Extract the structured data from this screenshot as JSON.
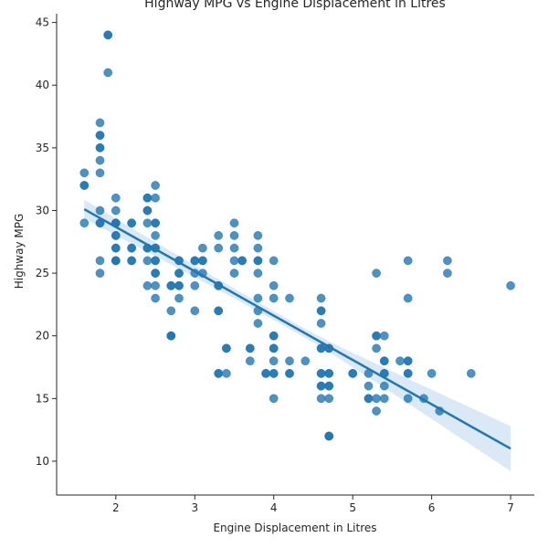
{
  "chart_data": {
    "type": "scatter",
    "title": "Highway MPG vs Engine Displacement in Litres",
    "xlabel": "Engine Displacement in Litres",
    "ylabel": "Highway MPG",
    "xlim": [
      1.25,
      7.3
    ],
    "ylim": [
      7.3,
      45.7
    ],
    "xticks": [
      2,
      3,
      4,
      5,
      6,
      7
    ],
    "yticks": [
      10,
      15,
      20,
      25,
      30,
      35,
      40,
      45
    ],
    "grid": false,
    "point_color": "#1f77b4",
    "line_color": "#1f77b4",
    "band_color": "#cfe0f1",
    "regression": {
      "x": [
        1.6,
        7.0
      ],
      "y": [
        30.1,
        11.0
      ],
      "ci_low": [
        29.4,
        9.2
      ],
      "ci_high": [
        30.9,
        12.8
      ]
    },
    "points": [
      [
        1.6,
        33
      ],
      [
        1.6,
        32
      ],
      [
        1.6,
        32
      ],
      [
        1.6,
        29
      ],
      [
        1.8,
        37
      ],
      [
        1.8,
        36
      ],
      [
        1.8,
        36
      ],
      [
        1.8,
        35
      ],
      [
        1.8,
        35
      ],
      [
        1.8,
        34
      ],
      [
        1.8,
        33
      ],
      [
        1.8,
        30
      ],
      [
        1.8,
        29
      ],
      [
        1.8,
        29
      ],
      [
        1.8,
        26
      ],
      [
        1.8,
        25
      ],
      [
        1.9,
        44
      ],
      [
        1.9,
        44
      ],
      [
        1.9,
        41
      ],
      [
        2.0,
        31
      ],
      [
        2.0,
        30
      ],
      [
        2.0,
        29
      ],
      [
        2.0,
        29
      ],
      [
        2.0,
        29
      ],
      [
        2.0,
        28
      ],
      [
        2.0,
        28
      ],
      [
        2.0,
        27
      ],
      [
        2.0,
        27
      ],
      [
        2.0,
        26
      ],
      [
        2.0,
        26
      ],
      [
        2.0,
        26
      ],
      [
        2.2,
        29
      ],
      [
        2.2,
        29
      ],
      [
        2.2,
        27
      ],
      [
        2.2,
        27
      ],
      [
        2.2,
        26
      ],
      [
        2.2,
        26
      ],
      [
        2.4,
        31
      ],
      [
        2.4,
        31
      ],
      [
        2.4,
        30
      ],
      [
        2.4,
        30
      ],
      [
        2.4,
        29
      ],
      [
        2.4,
        27
      ],
      [
        2.4,
        27
      ],
      [
        2.4,
        26
      ],
      [
        2.4,
        24
      ],
      [
        2.5,
        32
      ],
      [
        2.5,
        31
      ],
      [
        2.5,
        29
      ],
      [
        2.5,
        29
      ],
      [
        2.5,
        28
      ],
      [
        2.5,
        27
      ],
      [
        2.5,
        27
      ],
      [
        2.5,
        26
      ],
      [
        2.5,
        26
      ],
      [
        2.5,
        25
      ],
      [
        2.5,
        25
      ],
      [
        2.5,
        24
      ],
      [
        2.5,
        23
      ],
      [
        2.7,
        24
      ],
      [
        2.7,
        24
      ],
      [
        2.7,
        22
      ],
      [
        2.7,
        20
      ],
      [
        2.7,
        20
      ],
      [
        2.7,
        20
      ],
      [
        2.8,
        26
      ],
      [
        2.8,
        26
      ],
      [
        2.8,
        25
      ],
      [
        2.8,
        25
      ],
      [
        2.8,
        24
      ],
      [
        2.8,
        24
      ],
      [
        2.8,
        23
      ],
      [
        3.0,
        26
      ],
      [
        3.0,
        26
      ],
      [
        3.0,
        25
      ],
      [
        3.0,
        24
      ],
      [
        3.0,
        22
      ],
      [
        3.1,
        27
      ],
      [
        3.1,
        26
      ],
      [
        3.1,
        26
      ],
      [
        3.1,
        25
      ],
      [
        3.3,
        28
      ],
      [
        3.3,
        27
      ],
      [
        3.3,
        24
      ],
      [
        3.3,
        24
      ],
      [
        3.3,
        22
      ],
      [
        3.3,
        22
      ],
      [
        3.3,
        17
      ],
      [
        3.3,
        17
      ],
      [
        3.4,
        19
      ],
      [
        3.4,
        19
      ],
      [
        3.4,
        17
      ],
      [
        3.5,
        29
      ],
      [
        3.5,
        28
      ],
      [
        3.5,
        27
      ],
      [
        3.5,
        26
      ],
      [
        3.5,
        25
      ],
      [
        3.6,
        26
      ],
      [
        3.6,
        26
      ],
      [
        3.7,
        19
      ],
      [
        3.7,
        19
      ],
      [
        3.7,
        18
      ],
      [
        3.8,
        28
      ],
      [
        3.8,
        27
      ],
      [
        3.8,
        26
      ],
      [
        3.8,
        26
      ],
      [
        3.8,
        25
      ],
      [
        3.8,
        23
      ],
      [
        3.8,
        22
      ],
      [
        3.8,
        21
      ],
      [
        3.9,
        17
      ],
      [
        3.9,
        17
      ],
      [
        4.0,
        26
      ],
      [
        4.0,
        24
      ],
      [
        4.0,
        23
      ],
      [
        4.0,
        20
      ],
      [
        4.0,
        20
      ],
      [
        4.0,
        19
      ],
      [
        4.0,
        19
      ],
      [
        4.0,
        18
      ],
      [
        4.0,
        17
      ],
      [
        4.0,
        17
      ],
      [
        4.0,
        15
      ],
      [
        4.2,
        23
      ],
      [
        4.2,
        18
      ],
      [
        4.2,
        17
      ],
      [
        4.2,
        17
      ],
      [
        4.4,
        18
      ],
      [
        4.6,
        23
      ],
      [
        4.6,
        22
      ],
      [
        4.6,
        22
      ],
      [
        4.6,
        21
      ],
      [
        4.6,
        19
      ],
      [
        4.6,
        19
      ],
      [
        4.6,
        17
      ],
      [
        4.6,
        17
      ],
      [
        4.6,
        16
      ],
      [
        4.6,
        16
      ],
      [
        4.6,
        15
      ],
      [
        4.7,
        19
      ],
      [
        4.7,
        19
      ],
      [
        4.7,
        17
      ],
      [
        4.7,
        17
      ],
      [
        4.7,
        16
      ],
      [
        4.7,
        16
      ],
      [
        4.7,
        15
      ],
      [
        4.7,
        12
      ],
      [
        4.7,
        12
      ],
      [
        4.7,
        12
      ],
      [
        5.0,
        17
      ],
      [
        5.0,
        17
      ],
      [
        5.2,
        17
      ],
      [
        5.2,
        16
      ],
      [
        5.2,
        15
      ],
      [
        5.2,
        15
      ],
      [
        5.3,
        25
      ],
      [
        5.3,
        20
      ],
      [
        5.3,
        20
      ],
      [
        5.3,
        19
      ],
      [
        5.3,
        15
      ],
      [
        5.3,
        14
      ],
      [
        5.4,
        20
      ],
      [
        5.4,
        18
      ],
      [
        5.4,
        18
      ],
      [
        5.4,
        17
      ],
      [
        5.4,
        17
      ],
      [
        5.4,
        16
      ],
      [
        5.4,
        15
      ],
      [
        5.6,
        18
      ],
      [
        5.7,
        26
      ],
      [
        5.7,
        23
      ],
      [
        5.7,
        18
      ],
      [
        5.7,
        18
      ],
      [
        5.7,
        17
      ],
      [
        5.7,
        17
      ],
      [
        5.7,
        15
      ],
      [
        5.9,
        15
      ],
      [
        6.0,
        17
      ],
      [
        6.1,
        14
      ],
      [
        6.2,
        26
      ],
      [
        6.2,
        25
      ],
      [
        6.5,
        17
      ],
      [
        7.0,
        24
      ]
    ]
  }
}
